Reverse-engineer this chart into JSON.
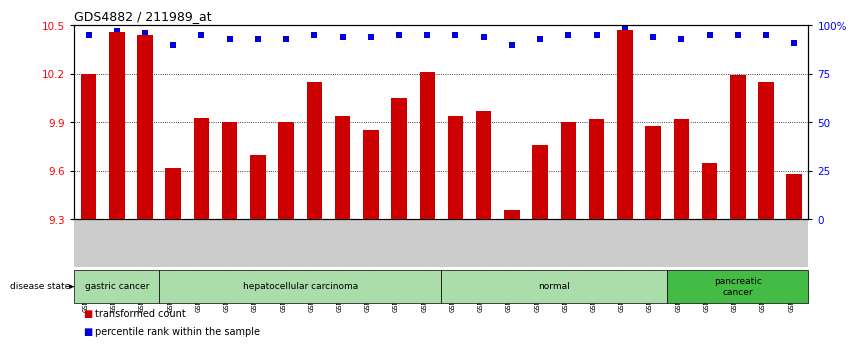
{
  "title": "GDS4882 / 211989_at",
  "samples": [
    "GSM1200291",
    "GSM1200292",
    "GSM1200293",
    "GSM1200294",
    "GSM1200295",
    "GSM1200296",
    "GSM1200297",
    "GSM1200298",
    "GSM1200299",
    "GSM1200300",
    "GSM1200301",
    "GSM1200302",
    "GSM1200303",
    "GSM1200304",
    "GSM1200305",
    "GSM1200306",
    "GSM1200307",
    "GSM1200308",
    "GSM1200309",
    "GSM1200310",
    "GSM1200311",
    "GSM1200312",
    "GSM1200313",
    "GSM1200314",
    "GSM1200315",
    "GSM1200316"
  ],
  "bar_values": [
    10.2,
    10.46,
    10.44,
    9.62,
    9.93,
    9.9,
    9.7,
    9.9,
    10.15,
    9.94,
    9.85,
    10.05,
    10.21,
    9.94,
    9.97,
    9.36,
    9.76,
    9.9,
    9.92,
    10.47,
    9.88,
    9.92,
    9.65,
    10.19,
    10.15,
    9.58
  ],
  "percentile_values": [
    95,
    97,
    96,
    90,
    95,
    93,
    93,
    93,
    95,
    94,
    94,
    95,
    95,
    95,
    94,
    90,
    93,
    95,
    95,
    99,
    94,
    93,
    95,
    95,
    95,
    91
  ],
  "disease_groups": [
    {
      "label": "gastric cancer",
      "start": 0,
      "end": 2,
      "color": "#aaddaa"
    },
    {
      "label": "hepatocellular carcinoma",
      "start": 3,
      "end": 12,
      "color": "#aaddaa"
    },
    {
      "label": "normal",
      "start": 13,
      "end": 20,
      "color": "#aaddaa"
    },
    {
      "label": "pancreatic\ncancer",
      "start": 21,
      "end": 25,
      "color": "#44bb44"
    }
  ],
  "ylim_left": [
    9.3,
    10.5
  ],
  "ylim_right": [
    0,
    100
  ],
  "yticks_left": [
    9.3,
    9.6,
    9.9,
    10.2,
    10.5
  ],
  "yticks_right": [
    0,
    25,
    50,
    75,
    100
  ],
  "ytick_labels_right": [
    "0",
    "25",
    "50",
    "75",
    "100%"
  ],
  "bar_color": "#CC0000",
  "dot_color": "#0000DD",
  "background_color": "#ffffff",
  "xtick_bg_color": "#cccccc",
  "disease_border_color": "#000000",
  "grid_color": "#000000"
}
